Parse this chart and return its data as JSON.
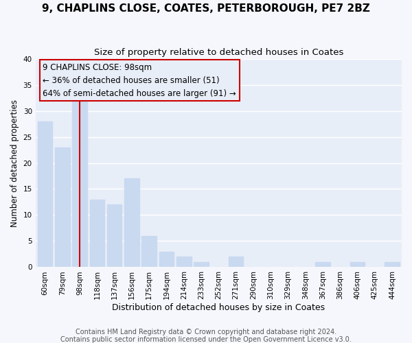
{
  "title1": "9, CHAPLINS CLOSE, COATES, PETERBOROUGH, PE7 2BZ",
  "title2": "Size of property relative to detached houses in Coates",
  "xlabel": "Distribution of detached houses by size in Coates",
  "ylabel": "Number of detached properties",
  "categories": [
    "60sqm",
    "79sqm",
    "98sqm",
    "118sqm",
    "137sqm",
    "156sqm",
    "175sqm",
    "194sqm",
    "214sqm",
    "233sqm",
    "252sqm",
    "271sqm",
    "290sqm",
    "310sqm",
    "329sqm",
    "348sqm",
    "367sqm",
    "386sqm",
    "406sqm",
    "425sqm",
    "444sqm"
  ],
  "values": [
    28,
    23,
    32,
    13,
    12,
    17,
    6,
    3,
    2,
    1,
    0,
    2,
    0,
    0,
    0,
    0,
    1,
    0,
    1,
    0,
    1
  ],
  "bar_color": "#c9d9f0",
  "highlight_bar_index": 2,
  "highlight_line_color": "#cc0000",
  "ylim": [
    0,
    40
  ],
  "yticks": [
    0,
    5,
    10,
    15,
    20,
    25,
    30,
    35,
    40
  ],
  "annotation_line1": "9 CHAPLINS CLOSE: 98sqm",
  "annotation_line2": "← 36% of detached houses are smaller (51)",
  "annotation_line3": "64% of semi-detached houses are larger (91) →",
  "annotation_box_edgecolor": "#cc0000",
  "footer1": "Contains HM Land Registry data © Crown copyright and database right 2024.",
  "footer2": "Contains public sector information licensed under the Open Government Licence v3.0.",
  "plot_bg_color": "#e8eef8",
  "fig_bg_color": "#f5f7fc",
  "grid_color": "#ffffff",
  "title1_fontsize": 11,
  "title2_fontsize": 9.5,
  "xlabel_fontsize": 9,
  "ylabel_fontsize": 8.5,
  "tick_fontsize": 7.5,
  "annotation_fontsize": 8.5,
  "footer_fontsize": 7
}
